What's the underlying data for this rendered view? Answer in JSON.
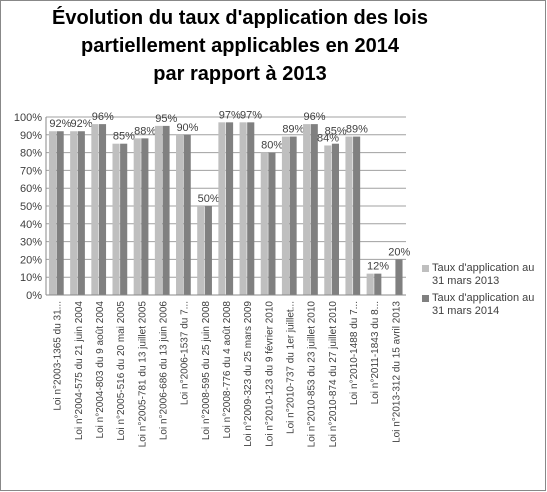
{
  "chart_data": {
    "type": "bar",
    "title": [
      "Évolution du taux d'application des lois",
      "partiellement applicables en 2014",
      "par rapport à 2013"
    ],
    "categories": [
      "Loi n°2003-1365 du 31...",
      "Loi n°2004-575 du 21 juin 2004",
      "Loi n°2004-803 du 9 août 2004",
      "Loi n°2005-516 du 20 mai 2005",
      "Loi n°2005-781 du 13 juillet 2005",
      "Loi n°2006-686 du 13 juin 2006",
      "Loi n°2006-1537 du 7...",
      "Loi n°2008-595 du 25 juin 2008",
      "Loi n°2008-776 du 4 août 2008",
      "Loi n°2009-323 du 25 mars 2009",
      "Loi n°2010-123 du 9 février 2010",
      "Loi n°2010-737 du 1er juillet...",
      "Loi n°2010-853 du 23 juillet 2010",
      "Loi n°2010-874 du 27 juillet 2010",
      "Loi n°2010-1488 du 7...",
      "Loi n°2011-1843 du 8...",
      "Loi n°2013-312 du 15 avril 2013"
    ],
    "series": [
      {
        "name": "Taux d'application au 31 mars 2013",
        "color": "#bfbfbf",
        "values": [
          92,
          92,
          96,
          85,
          88,
          95,
          90,
          50,
          97,
          97,
          80,
          89,
          96,
          84,
          89,
          12,
          null
        ],
        "value_labels": [
          null,
          null,
          null,
          null,
          null,
          null,
          null,
          null,
          null,
          null,
          null,
          null,
          null,
          "84%",
          null,
          null,
          null
        ]
      },
      {
        "name": "Taux d'application au 31 mars 2014",
        "color": "#808080",
        "values": [
          92,
          92,
          96,
          85,
          88,
          95,
          90,
          50,
          97,
          97,
          80,
          89,
          96,
          85,
          89,
          12,
          20
        ],
        "value_labels": [
          "92%",
          "92%",
          "96%",
          "85%",
          "88%",
          "95%",
          "90%",
          "50%",
          "97%",
          "97%",
          "80%",
          "89%",
          "96%",
          "85%",
          "89%",
          "12%",
          "20%"
        ]
      }
    ],
    "ylim": [
      0,
      100
    ],
    "yticks": [
      {
        "value": 0,
        "label": "0%"
      },
      {
        "value": 10,
        "label": "10%"
      },
      {
        "value": 20,
        "label": "20%"
      },
      {
        "value": 30,
        "label": "30%"
      },
      {
        "value": 40,
        "label": "40%"
      },
      {
        "value": 50,
        "label": "50%"
      },
      {
        "value": 60,
        "label": "60%"
      },
      {
        "value": 70,
        "label": "70%"
      },
      {
        "value": 80,
        "label": "80%"
      },
      {
        "value": 90,
        "label": "90%"
      },
      {
        "value": 100,
        "label": "100%"
      }
    ],
    "grid": true,
    "legend": "right"
  }
}
